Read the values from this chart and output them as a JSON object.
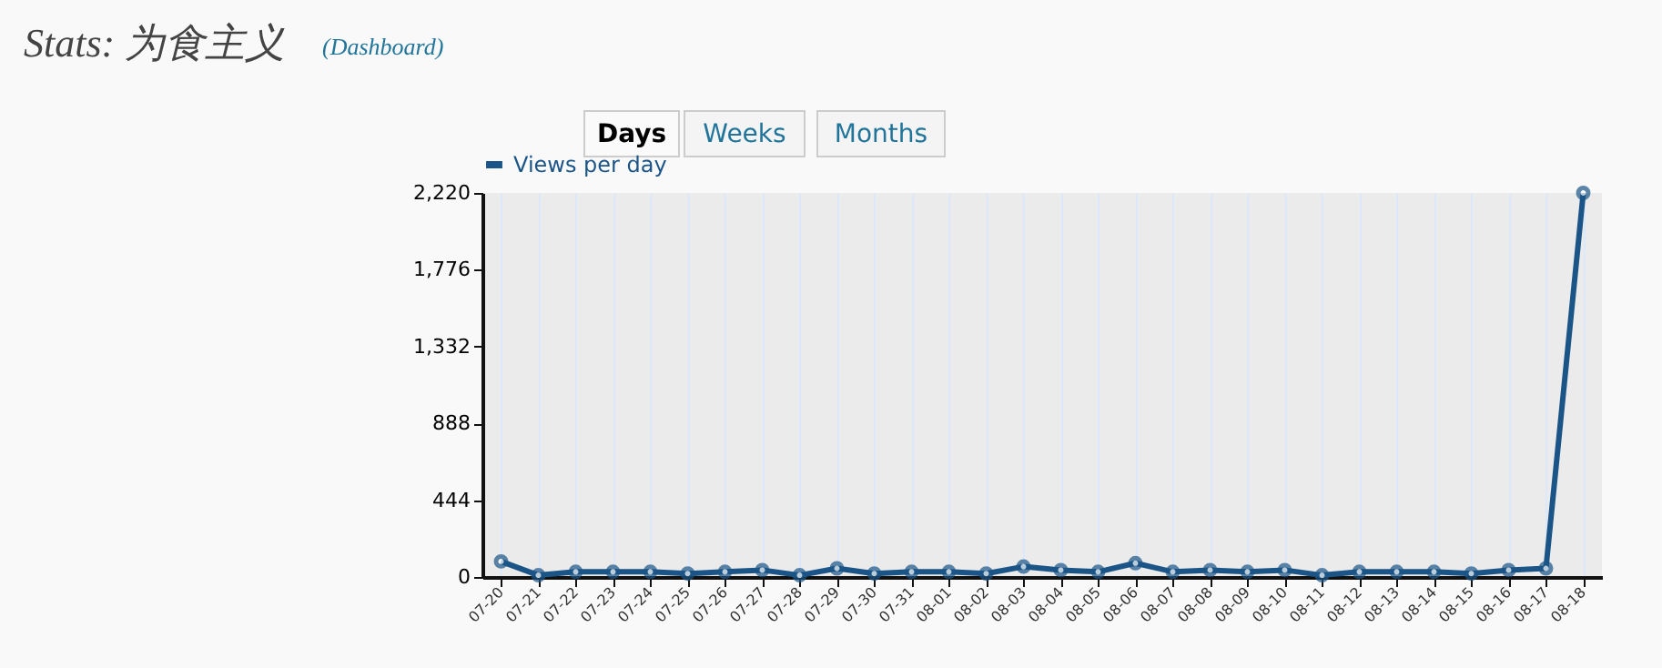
{
  "chart_data": {
    "type": "line",
    "title": "Stats: 为食主义",
    "subtitle": "(Dashboard)",
    "annotations": [
      "Days",
      "Weeks",
      "Months"
    ],
    "categories": [
      "07-20",
      "07-21",
      "07-22",
      "07-23",
      "07-24",
      "07-25",
      "07-26",
      "07-27",
      "07-28",
      "07-29",
      "07-30",
      "07-31",
      "08-01",
      "08-02",
      "08-03",
      "08-04",
      "08-05",
      "08-06",
      "08-07",
      "08-08",
      "08-09",
      "08-10",
      "08-11",
      "08-12",
      "08-13",
      "08-14",
      "08-15",
      "08-16",
      "08-17",
      "08-18"
    ],
    "series": [
      {
        "name": "Views per day",
        "color": "#1b5587",
        "values": [
          90,
          10,
          30,
          30,
          30,
          20,
          30,
          40,
          10,
          50,
          20,
          30,
          30,
          20,
          60,
          40,
          30,
          80,
          30,
          40,
          30,
          40,
          10,
          30,
          30,
          30,
          20,
          40,
          50,
          2220
        ]
      }
    ],
    "ylim": [
      0,
      2220
    ],
    "yticks": [
      {
        "value": 0,
        "label": "0"
      },
      {
        "value": 444,
        "label": "444"
      },
      {
        "value": 888,
        "label": "888"
      },
      {
        "value": 1332,
        "label": "1,332"
      },
      {
        "value": 1776,
        "label": "1,776"
      },
      {
        "value": 2220,
        "label": "2,220"
      }
    ],
    "grid": "x",
    "legend": "top left",
    "marker": "circle",
    "line_style": "solid"
  }
}
